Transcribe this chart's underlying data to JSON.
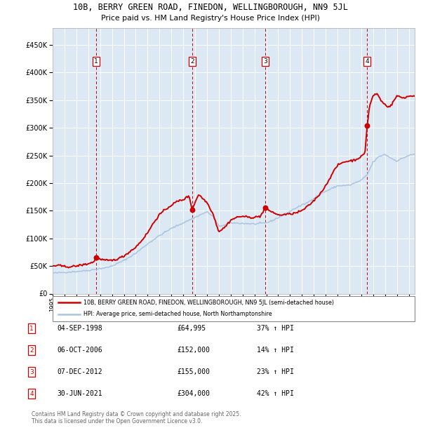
{
  "title1": "10B, BERRY GREEN ROAD, FINEDON, WELLINGBOROUGH, NN9 5JL",
  "title2": "Price paid vs. HM Land Registry's House Price Index (HPI)",
  "legend_line1": "10B, BERRY GREEN ROAD, FINEDON, WELLINGBOROUGH, NN9 5JL (semi-detached house)",
  "legend_line2": "HPI: Average price, semi-detached house, North Northamptonshire",
  "footer": "Contains HM Land Registry data © Crown copyright and database right 2025.\nThis data is licensed under the Open Government Licence v3.0.",
  "hpi_color": "#aac4e0",
  "price_color": "#cc0000",
  "marker_color": "#cc0000",
  "bg_color": "#dce9f5",
  "grid_color": "#ffffff",
  "vline_color": "#cc0000",
  "sale_markers": [
    {
      "date": 1998.67,
      "price": 64995,
      "label": "1"
    },
    {
      "date": 2006.75,
      "price": 152000,
      "label": "2"
    },
    {
      "date": 2012.92,
      "price": 155000,
      "label": "3"
    },
    {
      "date": 2021.5,
      "price": 304000,
      "label": "4"
    }
  ],
  "table_rows": [
    {
      "num": "1",
      "date": "04-SEP-1998",
      "price": "£64,995",
      "hpi": "37% ↑ HPI"
    },
    {
      "num": "2",
      "date": "06-OCT-2006",
      "price": "£152,000",
      "hpi": "14% ↑ HPI"
    },
    {
      "num": "3",
      "date": "07-DEC-2012",
      "price": "£155,000",
      "hpi": "23% ↑ HPI"
    },
    {
      "num": "4",
      "date": "30-JUN-2021",
      "price": "£304,000",
      "hpi": "42% ↑ HPI"
    }
  ],
  "ylim": [
    0,
    480000
  ],
  "yticks": [
    0,
    50000,
    100000,
    150000,
    200000,
    250000,
    300000,
    350000,
    400000,
    450000
  ],
  "xmin": 1995.0,
  "xmax": 2025.5
}
